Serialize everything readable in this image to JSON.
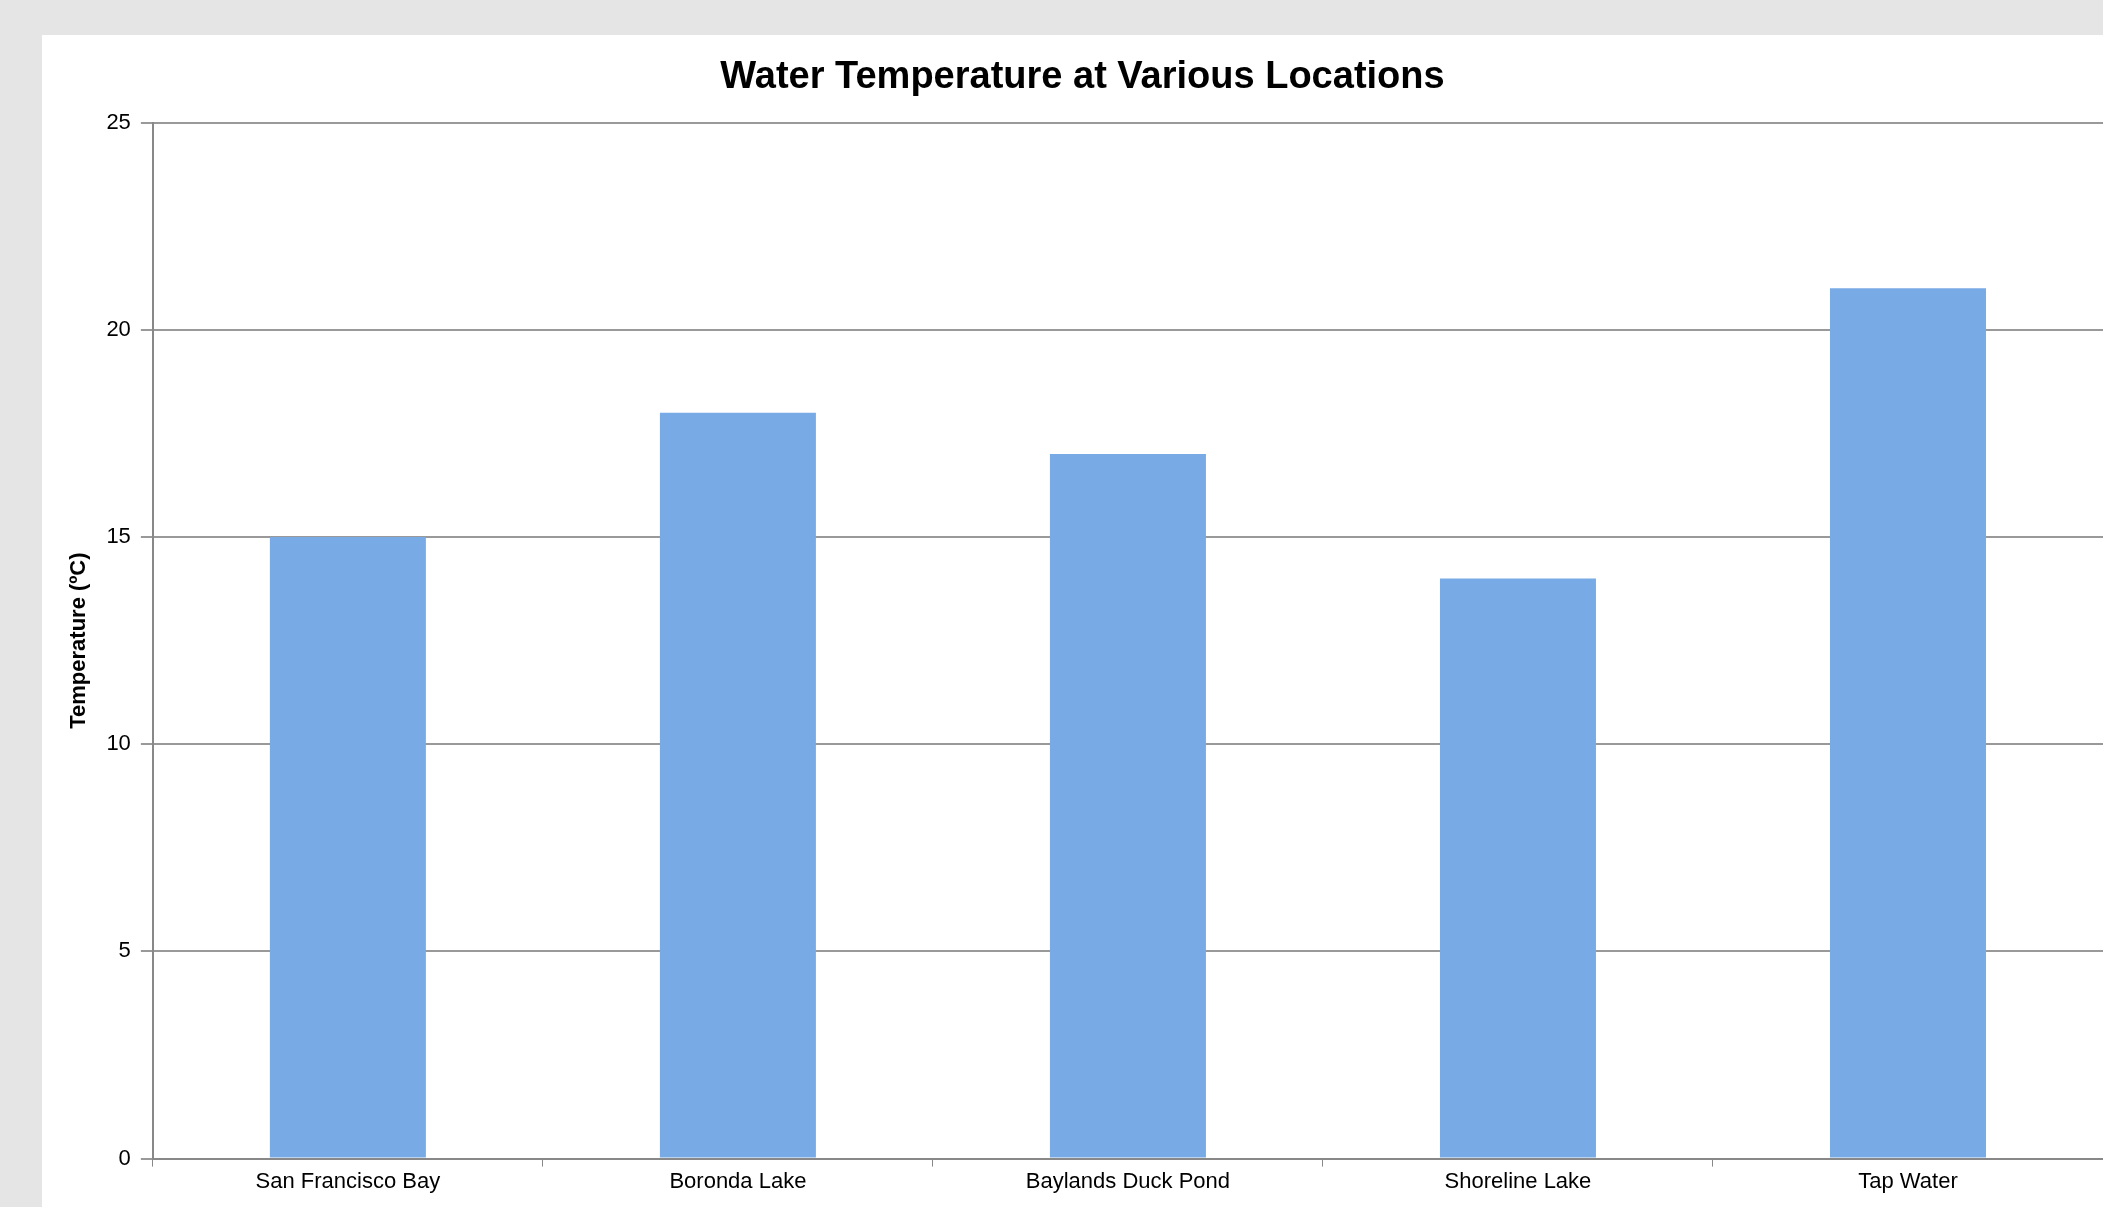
{
  "chart_data": {
    "type": "bar",
    "title": "Water Temperature at Various Locations",
    "ylabel": "Temperature (ºC)",
    "categories": [
      "San Francisco Bay",
      "Boronda Lake",
      "Baylands Duck Pond",
      "Shoreline Lake",
      "Tap Water"
    ],
    "values": [
      15,
      18,
      17,
      14,
      21
    ],
    "color": "#78aae6",
    "ylim": [
      0,
      25
    ],
    "yticks": [
      0,
      5,
      10,
      15,
      20,
      25
    ],
    "grid": "y",
    "legend": false
  }
}
